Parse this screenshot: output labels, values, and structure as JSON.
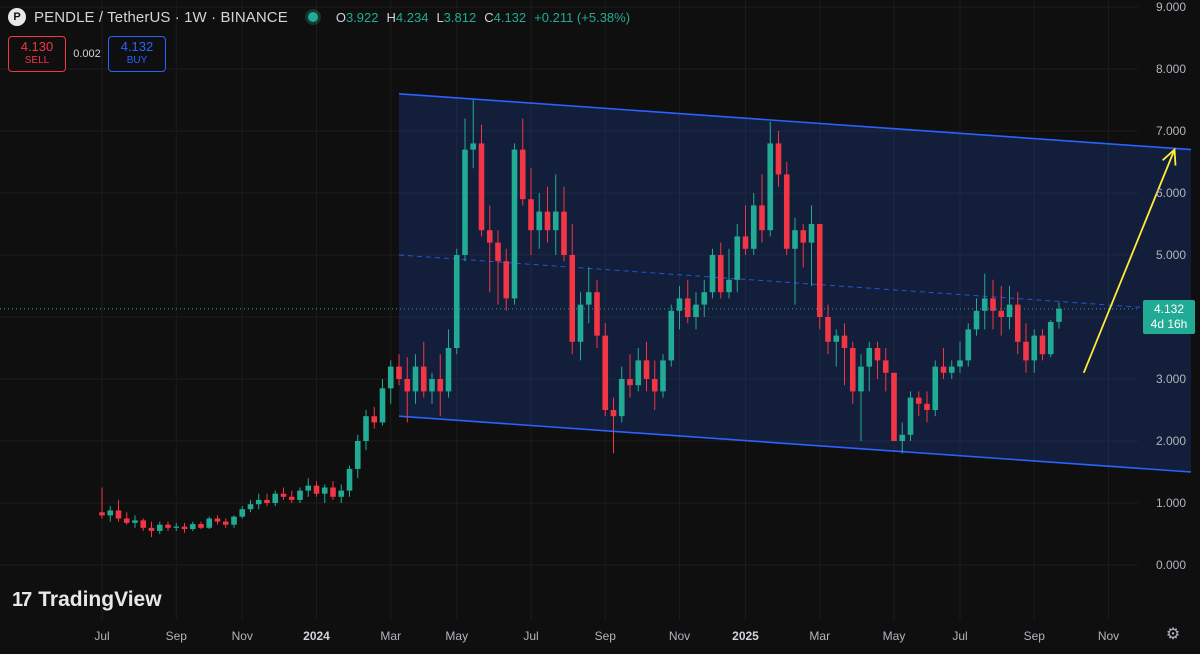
{
  "header": {
    "icon_letter": "P",
    "symbol": "PENDLE / TetherUS · 1W · BINANCE",
    "ohlc": [
      {
        "k": "O",
        "v": "3.922"
      },
      {
        "k": "H",
        "v": "4.234"
      },
      {
        "k": "L",
        "v": "3.812"
      },
      {
        "k": "C",
        "v": "4.132"
      },
      {
        "k": "",
        "v": "+0.211 (+5.38%)"
      }
    ]
  },
  "trade": {
    "sell_price": "4.130",
    "sell_label": "SELL",
    "spread": "0.002",
    "buy_price": "4.132",
    "buy_label": "BUY"
  },
  "price_tag": {
    "price": "4.132",
    "countdown": "4d 16h"
  },
  "logo": {
    "mark": "17",
    "text": "TradingView"
  },
  "colors": {
    "up": "#22ab94",
    "down": "#f23645",
    "channel": "#2962ff",
    "arrow": "#ffeb3b",
    "background": "#0f0f0f"
  },
  "chart_data": {
    "type": "candlestick",
    "interval": "1W",
    "y_axis": {
      "min": 0,
      "max": 9,
      "ticks": [
        0,
        1,
        2,
        3,
        4,
        5,
        6,
        7,
        8,
        9
      ],
      "tick_labels": [
        "0.000",
        "1.000",
        "2.000",
        "3.000",
        "4.000",
        "5.000",
        "6.000",
        "7.000",
        "8.000",
        "9.000"
      ]
    },
    "x_axis": {
      "tick_labels": [
        "Jul",
        "Sep",
        "Nov",
        "2024",
        "Mar",
        "May",
        "Jul",
        "Sep",
        "Nov",
        "2025",
        "Mar",
        "May",
        "Jul",
        "Sep",
        "Nov"
      ],
      "tick_weeks": [
        0,
        9,
        17,
        26,
        35,
        43,
        52,
        61,
        70,
        78,
        87,
        96,
        104,
        113,
        122
      ]
    },
    "candles": [
      {
        "o": 0.85,
        "h": 1.25,
        "l": 0.75,
        "c": 0.8
      },
      {
        "o": 0.8,
        "h": 0.95,
        "l": 0.7,
        "c": 0.88
      },
      {
        "o": 0.88,
        "h": 1.05,
        "l": 0.7,
        "c": 0.75
      },
      {
        "o": 0.75,
        "h": 0.85,
        "l": 0.65,
        "c": 0.68
      },
      {
        "o": 0.68,
        "h": 0.8,
        "l": 0.6,
        "c": 0.72
      },
      {
        "o": 0.72,
        "h": 0.75,
        "l": 0.55,
        "c": 0.6
      },
      {
        "o": 0.6,
        "h": 0.7,
        "l": 0.45,
        "c": 0.55
      },
      {
        "o": 0.55,
        "h": 0.7,
        "l": 0.5,
        "c": 0.65
      },
      {
        "o": 0.65,
        "h": 0.7,
        "l": 0.55,
        "c": 0.6
      },
      {
        "o": 0.6,
        "h": 0.68,
        "l": 0.55,
        "c": 0.62
      },
      {
        "o": 0.62,
        "h": 0.68,
        "l": 0.52,
        "c": 0.58
      },
      {
        "o": 0.58,
        "h": 0.7,
        "l": 0.55,
        "c": 0.66
      },
      {
        "o": 0.66,
        "h": 0.7,
        "l": 0.58,
        "c": 0.6
      },
      {
        "o": 0.6,
        "h": 0.78,
        "l": 0.58,
        "c": 0.75
      },
      {
        "o": 0.75,
        "h": 0.8,
        "l": 0.65,
        "c": 0.7
      },
      {
        "o": 0.7,
        "h": 0.75,
        "l": 0.6,
        "c": 0.65
      },
      {
        "o": 0.65,
        "h": 0.8,
        "l": 0.6,
        "c": 0.78
      },
      {
        "o": 0.78,
        "h": 0.95,
        "l": 0.75,
        "c": 0.9
      },
      {
        "o": 0.9,
        "h": 1.05,
        "l": 0.85,
        "c": 0.98
      },
      {
        "o": 0.98,
        "h": 1.15,
        "l": 0.9,
        "c": 1.05
      },
      {
        "o": 1.05,
        "h": 1.15,
        "l": 0.95,
        "c": 1.0
      },
      {
        "o": 1.0,
        "h": 1.2,
        "l": 0.95,
        "c": 1.15
      },
      {
        "o": 1.15,
        "h": 1.25,
        "l": 1.05,
        "c": 1.1
      },
      {
        "o": 1.1,
        "h": 1.2,
        "l": 1.0,
        "c": 1.05
      },
      {
        "o": 1.05,
        "h": 1.25,
        "l": 1.0,
        "c": 1.2
      },
      {
        "o": 1.2,
        "h": 1.4,
        "l": 1.1,
        "c": 1.28
      },
      {
        "o": 1.28,
        "h": 1.35,
        "l": 1.1,
        "c": 1.15
      },
      {
        "o": 1.15,
        "h": 1.3,
        "l": 1.0,
        "c": 1.25
      },
      {
        "o": 1.25,
        "h": 1.35,
        "l": 1.05,
        "c": 1.1
      },
      {
        "o": 1.1,
        "h": 1.3,
        "l": 1.0,
        "c": 1.2
      },
      {
        "o": 1.2,
        "h": 1.6,
        "l": 1.1,
        "c": 1.55
      },
      {
        "o": 1.55,
        "h": 2.1,
        "l": 1.4,
        "c": 2.0
      },
      {
        "o": 2.0,
        "h": 2.5,
        "l": 1.85,
        "c": 2.4
      },
      {
        "o": 2.4,
        "h": 2.55,
        "l": 2.2,
        "c": 2.3
      },
      {
        "o": 2.3,
        "h": 3.0,
        "l": 2.25,
        "c": 2.85
      },
      {
        "o": 2.85,
        "h": 3.3,
        "l": 2.6,
        "c": 3.2
      },
      {
        "o": 3.2,
        "h": 3.4,
        "l": 2.9,
        "c": 3.0
      },
      {
        "o": 3.0,
        "h": 3.35,
        "l": 2.3,
        "c": 2.8
      },
      {
        "o": 2.8,
        "h": 3.4,
        "l": 2.6,
        "c": 3.2
      },
      {
        "o": 3.2,
        "h": 3.6,
        "l": 2.7,
        "c": 2.8
      },
      {
        "o": 2.8,
        "h": 3.1,
        "l": 2.6,
        "c": 3.0
      },
      {
        "o": 3.0,
        "h": 3.4,
        "l": 2.4,
        "c": 2.8
      },
      {
        "o": 2.8,
        "h": 3.8,
        "l": 2.7,
        "c": 3.5
      },
      {
        "o": 3.5,
        "h": 5.1,
        "l": 3.4,
        "c": 5.0
      },
      {
        "o": 5.0,
        "h": 7.2,
        "l": 4.9,
        "c": 6.7
      },
      {
        "o": 6.7,
        "h": 7.5,
        "l": 6.4,
        "c": 6.8
      },
      {
        "o": 6.8,
        "h": 7.1,
        "l": 5.3,
        "c": 5.4
      },
      {
        "o": 5.4,
        "h": 5.8,
        "l": 4.4,
        "c": 5.2
      },
      {
        "o": 5.2,
        "h": 5.4,
        "l": 4.2,
        "c": 4.9
      },
      {
        "o": 4.9,
        "h": 5.1,
        "l": 4.1,
        "c": 4.3
      },
      {
        "o": 4.3,
        "h": 6.8,
        "l": 4.2,
        "c": 6.7
      },
      {
        "o": 6.7,
        "h": 7.2,
        "l": 5.8,
        "c": 5.9
      },
      {
        "o": 5.9,
        "h": 6.4,
        "l": 5.0,
        "c": 5.4
      },
      {
        "o": 5.4,
        "h": 6.0,
        "l": 5.1,
        "c": 5.7
      },
      {
        "o": 5.7,
        "h": 6.1,
        "l": 5.2,
        "c": 5.4
      },
      {
        "o": 5.4,
        "h": 6.3,
        "l": 5.0,
        "c": 5.7
      },
      {
        "o": 5.7,
        "h": 6.1,
        "l": 4.9,
        "c": 5.0
      },
      {
        "o": 5.0,
        "h": 5.5,
        "l": 3.4,
        "c": 3.6
      },
      {
        "o": 3.6,
        "h": 4.4,
        "l": 3.3,
        "c": 4.2
      },
      {
        "o": 4.2,
        "h": 4.8,
        "l": 3.9,
        "c": 4.4
      },
      {
        "o": 4.4,
        "h": 4.6,
        "l": 3.5,
        "c": 3.7
      },
      {
        "o": 3.7,
        "h": 3.9,
        "l": 2.4,
        "c": 2.5
      },
      {
        "o": 2.5,
        "h": 2.7,
        "l": 1.8,
        "c": 2.4
      },
      {
        "o": 2.4,
        "h": 3.2,
        "l": 2.3,
        "c": 3.0
      },
      {
        "o": 3.0,
        "h": 3.4,
        "l": 2.7,
        "c": 2.9
      },
      {
        "o": 2.9,
        "h": 3.5,
        "l": 2.8,
        "c": 3.3
      },
      {
        "o": 3.3,
        "h": 3.6,
        "l": 2.8,
        "c": 3.0
      },
      {
        "o": 3.0,
        "h": 3.3,
        "l": 2.5,
        "c": 2.8
      },
      {
        "o": 2.8,
        "h": 3.4,
        "l": 2.7,
        "c": 3.3
      },
      {
        "o": 3.3,
        "h": 4.2,
        "l": 3.2,
        "c": 4.1
      },
      {
        "o": 4.1,
        "h": 4.5,
        "l": 3.8,
        "c": 4.3
      },
      {
        "o": 4.3,
        "h": 4.6,
        "l": 3.9,
        "c": 4.0
      },
      {
        "o": 4.0,
        "h": 4.4,
        "l": 3.8,
        "c": 4.2
      },
      {
        "o": 4.2,
        "h": 4.6,
        "l": 4.0,
        "c": 4.4
      },
      {
        "o": 4.4,
        "h": 5.1,
        "l": 4.3,
        "c": 5.0
      },
      {
        "o": 5.0,
        "h": 5.2,
        "l": 4.3,
        "c": 4.4
      },
      {
        "o": 4.4,
        "h": 5.1,
        "l": 4.3,
        "c": 4.6
      },
      {
        "o": 4.6,
        "h": 5.5,
        "l": 4.4,
        "c": 5.3
      },
      {
        "o": 5.3,
        "h": 5.8,
        "l": 5.0,
        "c": 5.1
      },
      {
        "o": 5.1,
        "h": 6.0,
        "l": 5.0,
        "c": 5.8
      },
      {
        "o": 5.8,
        "h": 6.3,
        "l": 5.2,
        "c": 5.4
      },
      {
        "o": 5.4,
        "h": 7.15,
        "l": 5.3,
        "c": 6.8
      },
      {
        "o": 6.8,
        "h": 7.0,
        "l": 6.1,
        "c": 6.3
      },
      {
        "o": 6.3,
        "h": 6.5,
        "l": 5.0,
        "c": 5.1
      },
      {
        "o": 5.1,
        "h": 5.6,
        "l": 4.2,
        "c": 5.4
      },
      {
        "o": 5.4,
        "h": 5.5,
        "l": 4.8,
        "c": 5.2
      },
      {
        "o": 5.2,
        "h": 5.8,
        "l": 4.5,
        "c": 5.5
      },
      {
        "o": 5.5,
        "h": 5.5,
        "l": 3.8,
        "c": 4.0
      },
      {
        "o": 4.0,
        "h": 4.2,
        "l": 3.4,
        "c": 3.6
      },
      {
        "o": 3.6,
        "h": 3.8,
        "l": 3.2,
        "c": 3.7
      },
      {
        "o": 3.7,
        "h": 3.9,
        "l": 2.9,
        "c": 3.5
      },
      {
        "o": 3.5,
        "h": 3.6,
        "l": 2.6,
        "c": 2.8
      },
      {
        "o": 2.8,
        "h": 3.4,
        "l": 2.0,
        "c": 3.2
      },
      {
        "o": 3.2,
        "h": 3.6,
        "l": 2.8,
        "c": 3.5
      },
      {
        "o": 3.5,
        "h": 3.6,
        "l": 3.0,
        "c": 3.3
      },
      {
        "o": 3.3,
        "h": 3.5,
        "l": 2.8,
        "c": 3.1
      },
      {
        "o": 3.1,
        "h": 3.1,
        "l": 2.0,
        "c": 2.0
      },
      {
        "o": 2.0,
        "h": 2.3,
        "l": 1.8,
        "c": 2.1
      },
      {
        "o": 2.1,
        "h": 2.8,
        "l": 2.0,
        "c": 2.7
      },
      {
        "o": 2.7,
        "h": 2.8,
        "l": 2.4,
        "c": 2.6
      },
      {
        "o": 2.6,
        "h": 2.8,
        "l": 2.3,
        "c": 2.5
      },
      {
        "o": 2.5,
        "h": 3.3,
        "l": 2.4,
        "c": 3.2
      },
      {
        "o": 3.2,
        "h": 3.5,
        "l": 3.0,
        "c": 3.1
      },
      {
        "o": 3.1,
        "h": 3.3,
        "l": 3.0,
        "c": 3.2
      },
      {
        "o": 3.2,
        "h": 3.6,
        "l": 3.1,
        "c": 3.3
      },
      {
        "o": 3.3,
        "h": 3.9,
        "l": 3.2,
        "c": 3.8
      },
      {
        "o": 3.8,
        "h": 4.3,
        "l": 3.7,
        "c": 4.1
      },
      {
        "o": 4.1,
        "h": 4.7,
        "l": 3.8,
        "c": 4.3
      },
      {
        "o": 4.3,
        "h": 4.6,
        "l": 3.8,
        "c": 4.1
      },
      {
        "o": 4.1,
        "h": 4.5,
        "l": 3.7,
        "c": 4.0
      },
      {
        "o": 4.0,
        "h": 4.5,
        "l": 3.8,
        "c": 4.2
      },
      {
        "o": 4.2,
        "h": 4.4,
        "l": 3.4,
        "c": 3.6
      },
      {
        "o": 3.6,
        "h": 3.9,
        "l": 3.1,
        "c": 3.3
      },
      {
        "o": 3.3,
        "h": 3.8,
        "l": 3.1,
        "c": 3.7
      },
      {
        "o": 3.7,
        "h": 3.8,
        "l": 3.3,
        "c": 3.4
      },
      {
        "o": 3.4,
        "h": 3.95,
        "l": 3.35,
        "c": 3.92
      },
      {
        "o": 3.922,
        "h": 4.234,
        "l": 3.812,
        "c": 4.132
      }
    ],
    "annotations": {
      "channel_upper": [
        {
          "week": 36,
          "price": 7.6
        },
        {
          "week": 132,
          "price": 6.7
        }
      ],
      "channel_lower": [
        {
          "week": 36,
          "price": 2.4
        },
        {
          "week": 132,
          "price": 1.5
        }
      ],
      "channel_mid": [
        {
          "week": 36,
          "price": 5.0
        },
        {
          "week": 132,
          "price": 4.1
        }
      ],
      "arrow": [
        {
          "week": 119,
          "price": 3.1
        },
        {
          "week": 130,
          "price": 6.7
        }
      ],
      "current_price": 4.132
    }
  }
}
